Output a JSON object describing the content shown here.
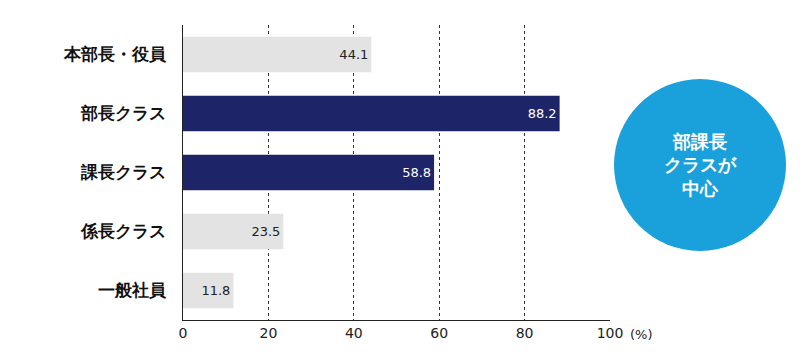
{
  "chart_data": {
    "type": "bar",
    "orientation": "horizontal",
    "categories": [
      "本部長・役員",
      "部長クラス",
      "課長クラス",
      "係長クラス",
      "一般社員"
    ],
    "values": [
      44.1,
      88.2,
      58.8,
      23.5,
      11.8
    ],
    "colors": [
      "#e3e3e3",
      "#1e2468",
      "#1e2468",
      "#e3e3e3",
      "#e3e3e3"
    ],
    "xlim": [
      0,
      100
    ],
    "xticks": [
      0,
      20,
      40,
      60,
      80,
      100
    ],
    "xlabel": "(%)",
    "grid": true,
    "data_labels": true,
    "annotations": [
      {
        "text": "部課長\nクラスが\n中心",
        "color": "#1aa0da"
      }
    ]
  }
}
